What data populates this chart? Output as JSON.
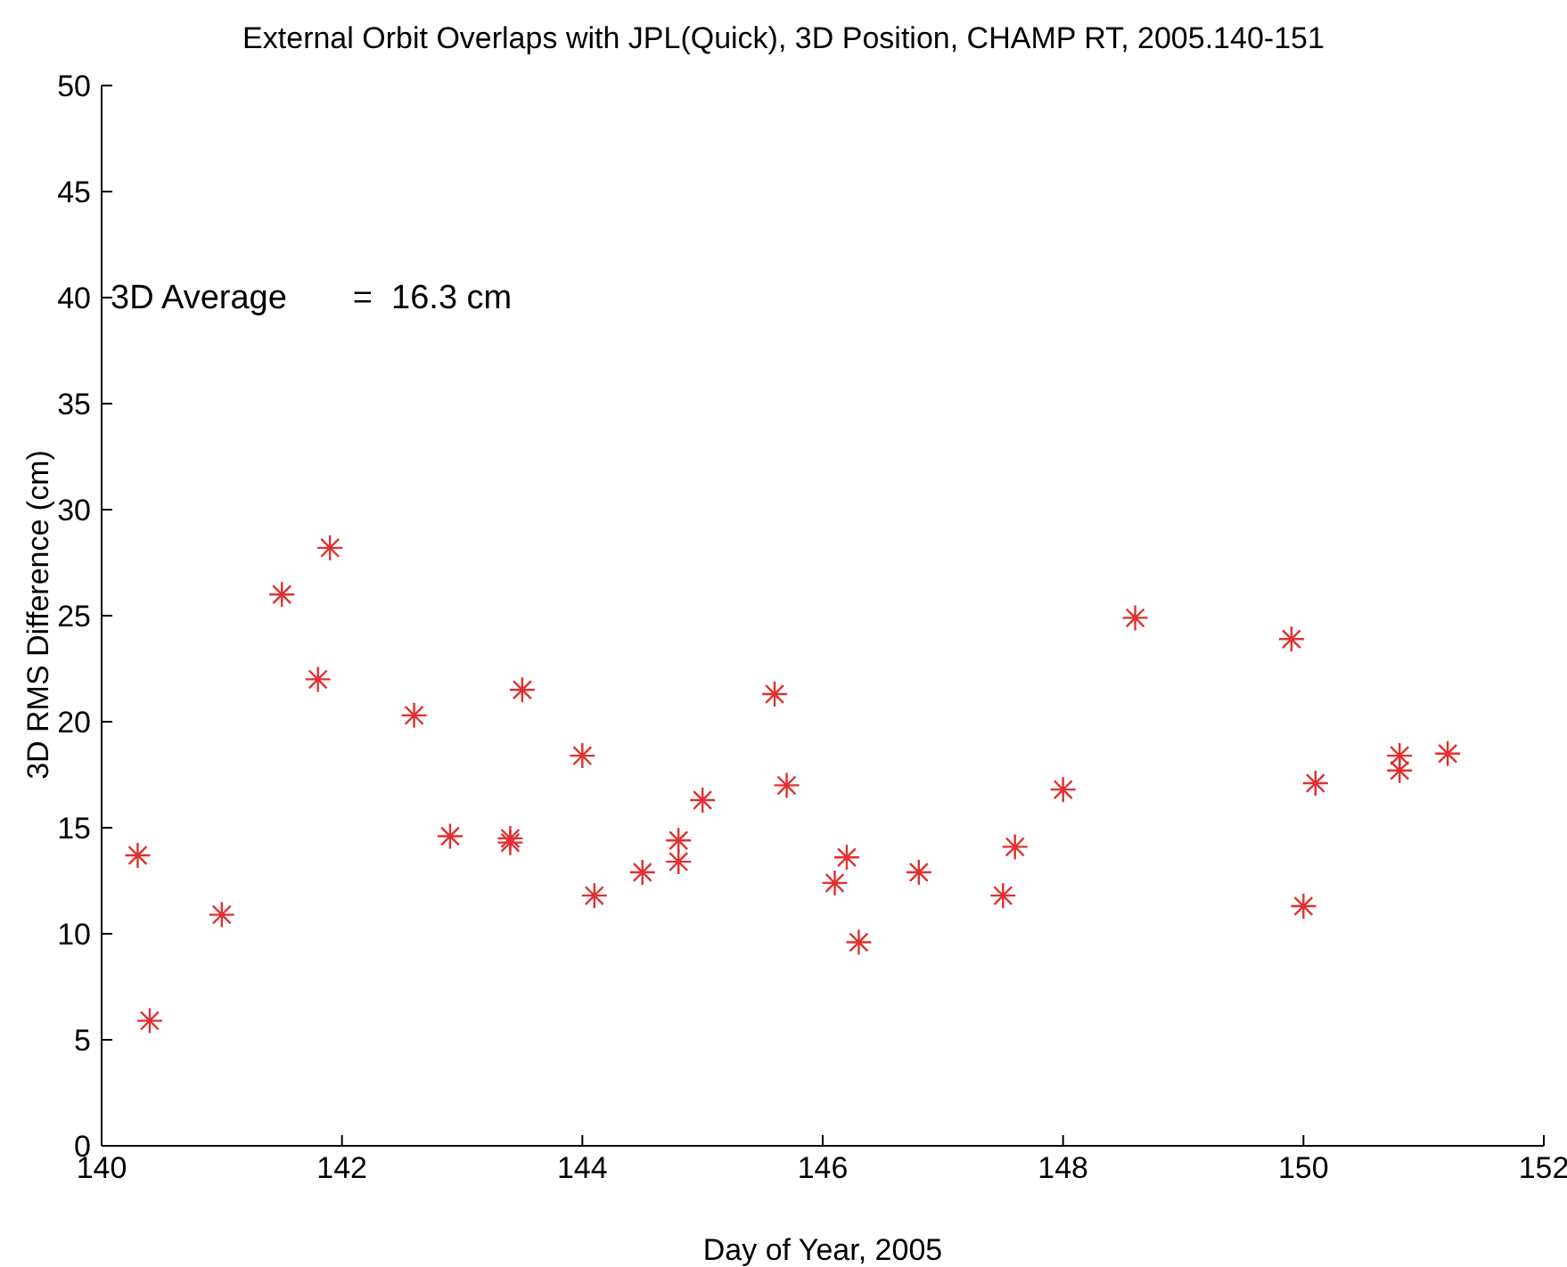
{
  "chart_data": {
    "type": "scatter",
    "title": "External Orbit Overlaps with JPL(Quick), 3D Position, CHAMP RT, 2005.140-151",
    "xlabel": "Day of Year, 2005",
    "ylabel": "3D RMS Difference (cm)",
    "annotations": [
      "3D Average       =  16.3 cm"
    ],
    "x": [
      140.3,
      140.4,
      141.0,
      141.5,
      141.8,
      141.9,
      142.6,
      142.9,
      143.4,
      143.4,
      143.5,
      144.0,
      144.1,
      144.5,
      144.8,
      144.8,
      145.0,
      145.6,
      145.7,
      146.1,
      146.2,
      146.3,
      146.8,
      147.5,
      147.6,
      148.0,
      148.6,
      149.9,
      150.0,
      150.1,
      150.8,
      150.8,
      151.2
    ],
    "series": [
      {
        "color": "#e03030",
        "values": [
          13.7,
          5.9,
          10.9,
          26.0,
          22.0,
          28.2,
          20.3,
          14.6,
          14.5,
          14.3,
          21.5,
          18.4,
          11.8,
          12.9,
          14.4,
          13.4,
          16.3,
          21.3,
          17.0,
          12.4,
          13.6,
          9.6,
          12.9,
          11.8,
          14.1,
          16.8,
          24.9,
          23.9,
          11.3,
          17.1,
          18.4,
          17.7,
          18.5
        ]
      }
    ],
    "xlim": [
      140,
      152
    ],
    "xticks": [
      140,
      142,
      144,
      146,
      148,
      150,
      152
    ],
    "ylim": [
      0,
      50
    ],
    "yticks": [
      0,
      5,
      10,
      15,
      20,
      25,
      30,
      35,
      40,
      45,
      50
    ],
    "marker": "cross"
  }
}
